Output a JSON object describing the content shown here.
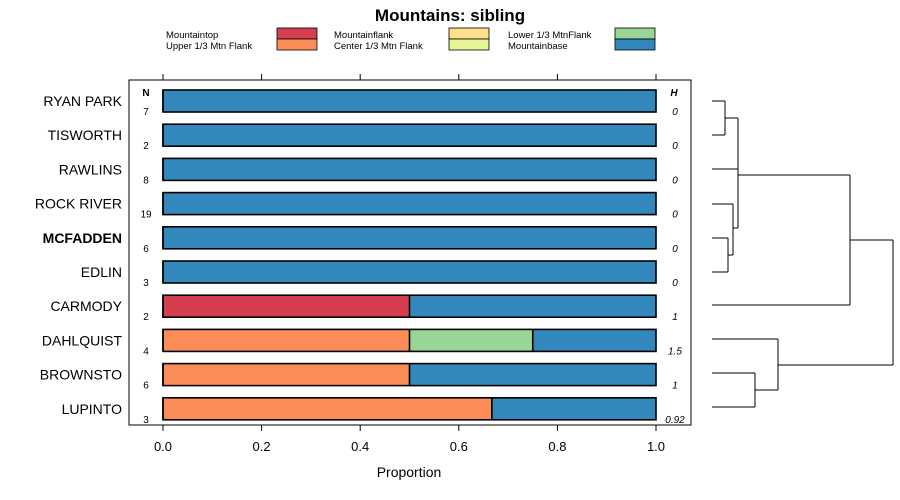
{
  "chart_data": {
    "type": "bar",
    "orientation": "horizontal",
    "stacked": true,
    "title": "Mountains: sibling",
    "xlabel": "Proportion",
    "ylabel": "",
    "xlim": [
      0,
      1
    ],
    "xticks": [
      "0.0",
      "0.2",
      "0.4",
      "0.6",
      "0.8",
      "1.0"
    ],
    "n_header": "N",
    "h_header": "H",
    "categories": [
      "RYAN PARK",
      "TISWORTH",
      "RAWLINS",
      "ROCK RIVER",
      "MCFADDEN",
      "EDLIN",
      "CARMODY",
      "DAHLQUIST",
      "BROWNSTO",
      "LUPINTO"
    ],
    "bold_category": "MCFADDEN",
    "n": [
      "7",
      "2",
      "8",
      "19",
      "6",
      "3",
      "2",
      "4",
      "6",
      "3"
    ],
    "h": [
      "0",
      "0",
      "0",
      "0",
      "0",
      "0",
      "1",
      "1.5",
      "1",
      "0.92"
    ],
    "series": [
      {
        "name": "Mountaintop",
        "color": "#d53e4f",
        "values": [
          0,
          0,
          0,
          0,
          0,
          0,
          0.5,
          0,
          0,
          0
        ]
      },
      {
        "name": "Upper 1/3 Mtn Flank",
        "color": "#fc8d59",
        "values": [
          0,
          0,
          0,
          0,
          0,
          0,
          0,
          0.5,
          0.5,
          0.667
        ]
      },
      {
        "name": "Mountainflank",
        "color": "#fee08b",
        "values": [
          0,
          0,
          0,
          0,
          0,
          0,
          0,
          0,
          0,
          0
        ]
      },
      {
        "name": "Center 1/3 Mtn Flank",
        "color": "#e6f598",
        "values": [
          0,
          0,
          0,
          0,
          0,
          0,
          0,
          0,
          0,
          0
        ]
      },
      {
        "name": "Lower 1/3 MtnFlank",
        "color": "#99d594",
        "values": [
          0,
          0,
          0,
          0,
          0,
          0,
          0,
          0.25,
          0,
          0
        ]
      },
      {
        "name": "Mountainbase",
        "color": "#3288bd",
        "values": [
          1,
          1,
          1,
          1,
          1,
          1,
          0.5,
          0.25,
          0.5,
          0.333
        ]
      }
    ],
    "legend_position": "top",
    "dendrogram": "right"
  }
}
